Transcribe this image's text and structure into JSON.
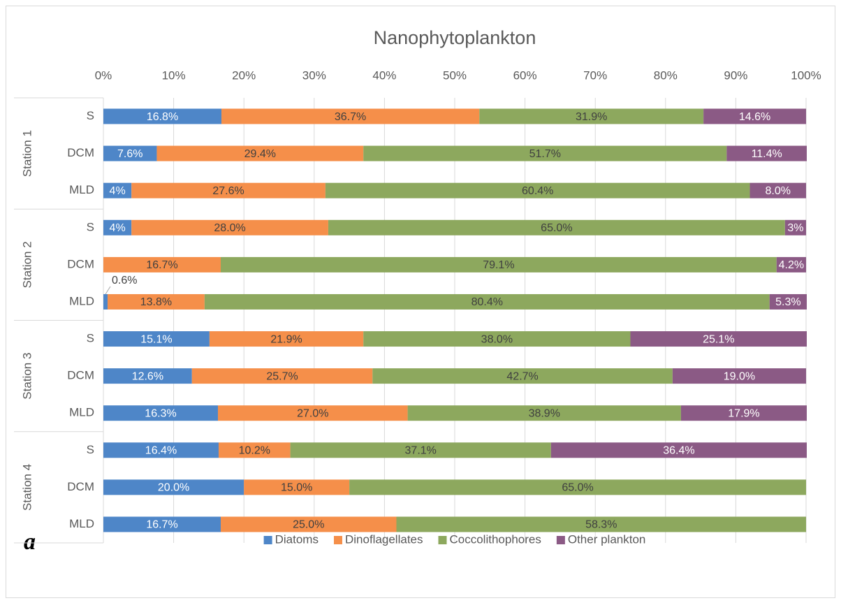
{
  "chart_data": {
    "type": "stacked_bar_horizontal",
    "title": "Nanophytoplankton",
    "panel_label": "a",
    "groups": [
      "Station 1",
      "Station 2",
      "Station 3",
      "Station 4"
    ],
    "categories": [
      "S",
      "DCM",
      "MLD",
      "S",
      "DCM",
      "MLD",
      "S",
      "DCM",
      "MLD",
      "S",
      "DCM",
      "MLD"
    ],
    "xlim": [
      0,
      100
    ],
    "xticks": [
      {
        "value": 0,
        "label": "0%"
      },
      {
        "value": 10,
        "label": "10%"
      },
      {
        "value": 20,
        "label": "20%"
      },
      {
        "value": 30,
        "label": "30%"
      },
      {
        "value": 40,
        "label": "40%"
      },
      {
        "value": 50,
        "label": "50%"
      },
      {
        "value": 60,
        "label": "60%"
      },
      {
        "value": 70,
        "label": "70%"
      },
      {
        "value": 80,
        "label": "80%"
      },
      {
        "value": 90,
        "label": "90%"
      },
      {
        "value": 100,
        "label": "100%"
      }
    ],
    "grid": true,
    "legend": "bottom",
    "series": [
      {
        "name": "Diatoms",
        "color": "#4e86c8",
        "values": [
          16.8,
          7.6,
          4,
          4,
          null,
          0.6,
          15.1,
          12.6,
          16.3,
          16.4,
          20.0,
          16.7
        ],
        "value_labels": [
          "16.8%",
          "7.6%",
          "4%",
          "4%",
          null,
          "0.6%",
          "15.1%",
          "12.6%",
          "16.3%",
          "16.4%",
          "20.0%",
          "16.7%"
        ]
      },
      {
        "name": "Dinoflagellates",
        "color": "#f58f4a",
        "values": [
          36.7,
          29.4,
          27.6,
          28.0,
          16.7,
          13.8,
          21.9,
          25.7,
          27.0,
          10.2,
          15.0,
          25.0
        ],
        "value_labels": [
          "36.7%",
          "29.4%",
          "27.6%",
          "28.0%",
          "16.7%",
          "13.8%",
          "21.9%",
          "25.7%",
          "27.0%",
          "10.2%",
          "15.0%",
          "25.0%"
        ]
      },
      {
        "name": "Coccolithophores",
        "color": "#8da85e",
        "values": [
          31.9,
          51.7,
          60.4,
          65.0,
          79.1,
          80.4,
          38.0,
          42.7,
          38.9,
          37.1,
          65.0,
          58.3
        ],
        "value_labels": [
          "31.9%",
          "51.7%",
          "60.4%",
          "65.0%",
          "79.1%",
          "80.4%",
          "38.0%",
          "42.7%",
          "38.9%",
          "37.1%",
          "65.0%",
          "58.3%"
        ]
      },
      {
        "name": "Other plankton",
        "color": "#8b5a85",
        "values": [
          14.6,
          11.4,
          8.0,
          3,
          4.2,
          5.3,
          25.1,
          19.0,
          17.9,
          36.4,
          null,
          null
        ],
        "value_labels": [
          "14.6%",
          "11.4%",
          "8.0%",
          "3%",
          "4.2%",
          "5.3%",
          "25.1%",
          "19.0%",
          "17.9%",
          "36.4%",
          null,
          null
        ]
      }
    ]
  }
}
